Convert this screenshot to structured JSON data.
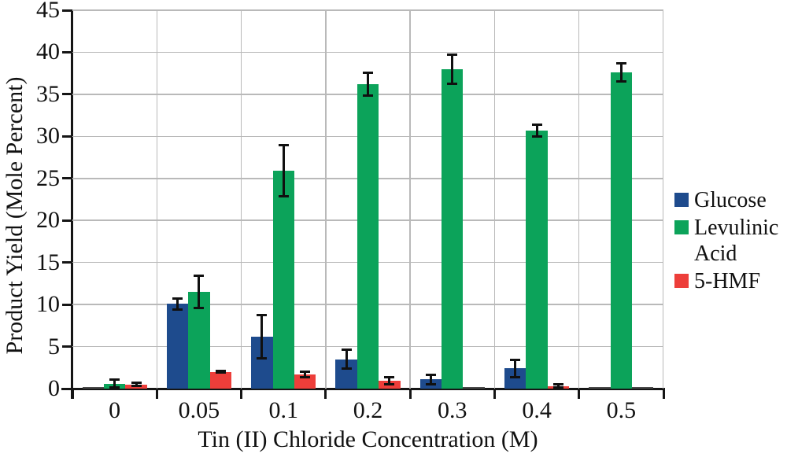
{
  "figure": {
    "x_axis_title": "Tin (II) Chloride Concentration (M)",
    "y_axis_title": "Product Yield (Mole Percent)"
  },
  "legend": {
    "items": [
      {
        "name": "glucose",
        "label": "Glucose",
        "color": "#1e4b8d"
      },
      {
        "name": "levulinic-acid",
        "label": "Levulinic Acid",
        "color": "#0ca35a"
      },
      {
        "name": "5-hmf",
        "label": "5-HMF",
        "color": "#ed3e3a"
      }
    ]
  },
  "chart_data": {
    "type": "bar",
    "title": "",
    "xlabel": "Tin (II) Chloride Concentration (M)",
    "ylabel": "Product Yield (Mole Percent)",
    "categories": [
      "0",
      "0.05",
      "0.1",
      "0.2",
      "0.3",
      "0.4",
      "0.5"
    ],
    "series": [
      {
        "name": "Glucose",
        "color": "#1e4b8d",
        "values": [
          0.05,
          10.1,
          6.2,
          3.5,
          1.1,
          2.4,
          0.05
        ],
        "errors": [
          null,
          0.7,
          2.6,
          1.2,
          0.6,
          1.1,
          null
        ]
      },
      {
        "name": "Levulinic Acid",
        "color": "#0ca35a",
        "values": [
          0.6,
          11.5,
          25.9,
          36.2,
          38.0,
          30.7,
          37.6
        ],
        "errors": [
          0.5,
          2.0,
          3.1,
          1.4,
          1.8,
          0.75,
          1.1
        ]
      },
      {
        "name": "5-HMF",
        "color": "#ed3e3a",
        "values": [
          0.5,
          2.0,
          1.7,
          0.95,
          0.05,
          0.3,
          0.05
        ],
        "errors": [
          0.25,
          0.15,
          0.35,
          0.5,
          null,
          0.25,
          null
        ]
      }
    ],
    "ylim": [
      0,
      45
    ],
    "y_ticks": [
      0,
      5,
      10,
      15,
      20,
      25,
      30,
      35,
      40,
      45
    ],
    "grid": true,
    "error_bars": true,
    "legend_position": "right"
  },
  "style": {
    "grid_color": "#b9b9b9",
    "axis_color": "#151515",
    "near_zero_bar_color": "#4a4a4a",
    "background": "#ffffff"
  }
}
